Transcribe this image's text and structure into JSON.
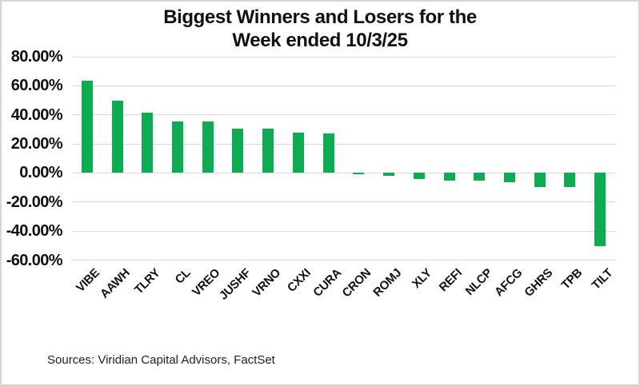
{
  "chart_data": {
    "type": "bar",
    "title_lines": [
      "Biggest Winners and Losers for the",
      "Week ended 10/3/25"
    ],
    "categories": [
      "VIBE",
      "AAWH",
      "TLRY",
      "CL",
      "VREO",
      "JUSHF",
      "VRNO",
      "CXXI",
      "CURA",
      "CRON",
      "ROMJ",
      "XLY",
      "REFI",
      "NLCP",
      "AFCG",
      "GHRS",
      "TPB",
      "TILT"
    ],
    "values": [
      63.7,
      50.0,
      41.5,
      35.4,
      35.3,
      30.4,
      30.3,
      27.9,
      27.2,
      -1.0,
      -2.2,
      -4.3,
      -5.1,
      -5.1,
      -6.5,
      -9.8,
      -9.8,
      -50.3
    ],
    "xlabel": "",
    "ylabel": "",
    "ylim": [
      -60,
      80
    ],
    "grid": true,
    "legend": "none",
    "yticks": [
      {
        "value": 80,
        "label": "80.00%"
      },
      {
        "value": 60,
        "label": "60.00%"
      },
      {
        "value": 40,
        "label": "40.00%"
      },
      {
        "value": 20,
        "label": "20.00%"
      },
      {
        "value": 0,
        "label": "0.00%"
      },
      {
        "value": -20,
        "label": "-20.00%"
      },
      {
        "value": -40,
        "label": "-40.00%"
      },
      {
        "value": -60,
        "label": "-60.00%"
      }
    ],
    "bar_color": "#0CAC52",
    "gridline_color": "#D9D9D9",
    "text_color": "#111111",
    "source_note": "Sources: Viridian Capital Advisors, FactSet"
  }
}
